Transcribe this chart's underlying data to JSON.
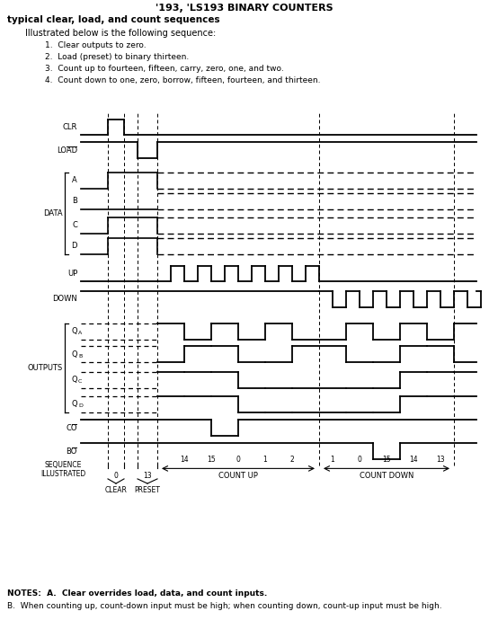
{
  "title": "'193, 'LS193 BINARY COUNTERS",
  "subtitle": "typical clear, load, and count sequences",
  "description": "Illustrated below is the following sequence:",
  "items": [
    "1.  Clear outputs to zero.",
    "2.  Load (preset) to binary thirteen.",
    "3.  Count up to fourteen, fifteen, carry, zero, one, and two.",
    "4.  Count down to one, zero, borrow, fifteen, fourteen, and thirteen."
  ],
  "note_a": "NOTES:  A.  Clear overrides load, data, and count inputs.",
  "note_b": "B.  When counting up, count-down input must be high; when counting down, count-up input must be high.",
  "bg_color": "#ffffff"
}
